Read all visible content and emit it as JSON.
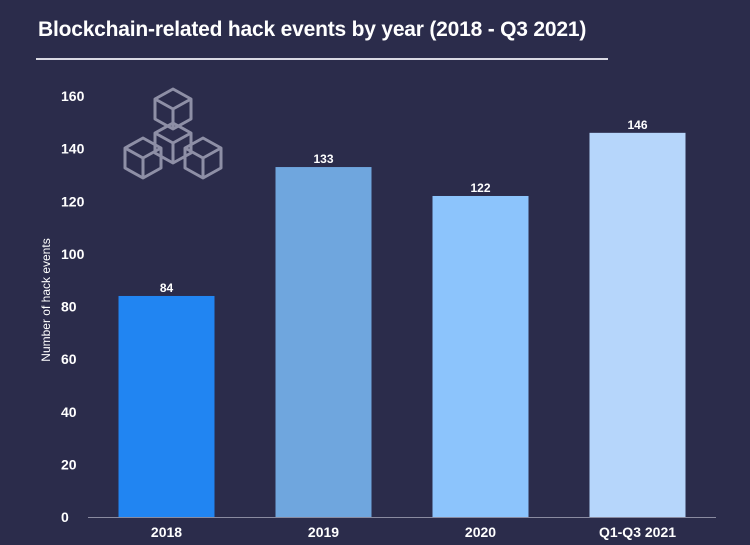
{
  "chart_data": {
    "type": "bar",
    "title": "Blockchain-related hack events by year (2018 - Q3 2021)",
    "xlabel": "",
    "ylabel": "Number of hack events",
    "categories": [
      "2018",
      "2019",
      "2020",
      "Q1-Q3 2021"
    ],
    "values": [
      84,
      133,
      122,
      146
    ],
    "data_labels": [
      "84",
      "133",
      "122",
      "146"
    ],
    "bar_colors": [
      "#2185f2",
      "#6fa6de",
      "#8cc4fc",
      "#b6d6fb"
    ],
    "ylim": [
      0,
      160
    ],
    "yticks": [
      0,
      20,
      40,
      60,
      80,
      100,
      120,
      140,
      160
    ],
    "ytick_labels": [
      "0",
      "20",
      "40",
      "60",
      "80",
      "100",
      "120",
      "140",
      "160"
    ],
    "grid": false,
    "legend": "none"
  },
  "logo": {
    "icon": "blockchain-cubes-icon",
    "color": "#8e8fa6"
  },
  "colors": {
    "background": "#2b2c4b",
    "text": "#ffffff",
    "axis": "#8a8ba0"
  }
}
